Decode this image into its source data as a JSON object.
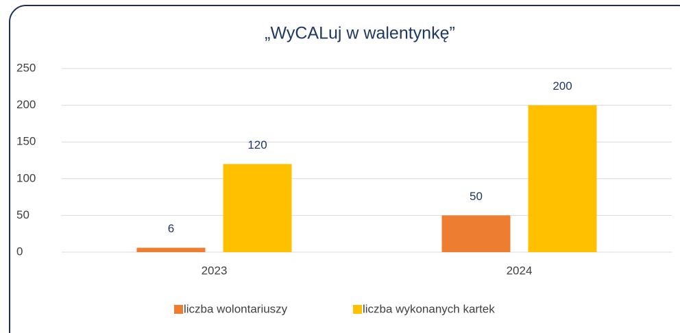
{
  "chart_data": {
    "type": "bar",
    "title": "„WyCALuj w walentynkę”",
    "categories": [
      "2023",
      "2024"
    ],
    "series": [
      {
        "name": "liczba wolontariuszy",
        "color": "#ed7d31",
        "values": [
          6,
          50
        ]
      },
      {
        "name": "liczba wykonanych kartek",
        "color": "#ffc000",
        "values": [
          120,
          200
        ]
      }
    ],
    "ylim": [
      0,
      250
    ],
    "yticks": [
      0,
      50,
      100,
      150,
      200,
      250
    ],
    "grid": true,
    "legend": "bottom"
  }
}
